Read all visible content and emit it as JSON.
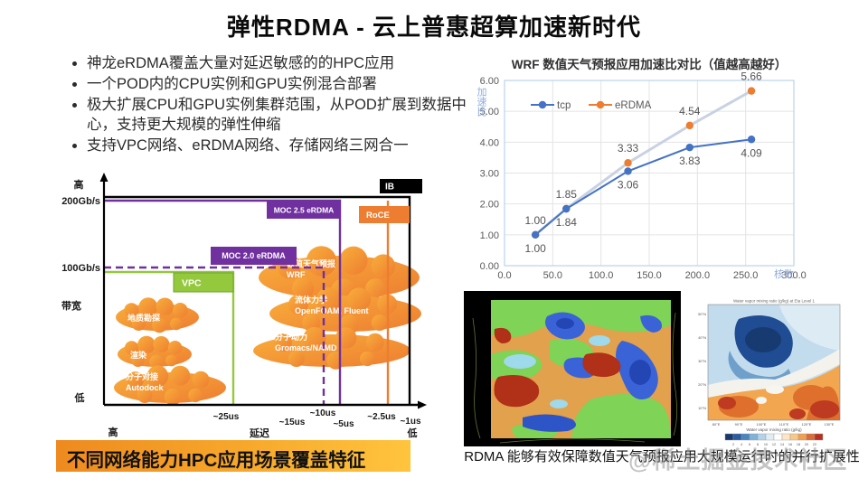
{
  "title": "弹性RDMA - 云上普惠超算加速新时代",
  "bullets": [
    "神龙eRDMA覆盖大量对延迟敏感的的HPC应用",
    "一个POD内的CPU实例和GPU实例混合部署",
    "极大扩展CPU和GPU实例集群范围，从POD扩展到数据中心，支持更大规模的弹性伸缩",
    "支持VPC网络、eRDMA网络、存储网络三网合一"
  ],
  "chart_data": {
    "type": "line",
    "title": "WRF 数值天气预报应用加速比对比（值越高越好）",
    "xlabel": "核数",
    "ylabel": "加速比",
    "x": [
      32,
      64,
      128,
      192,
      256
    ],
    "series": [
      {
        "name": "eRDMA",
        "marker_color": "#ED7D31",
        "line_color": "#C9D2E2",
        "legend_line_color": "#ED7D31",
        "values": [
          1.0,
          1.85,
          3.33,
          4.54,
          5.66
        ],
        "labels": [
          "1.00",
          "1.85",
          "3.33",
          "4.54",
          "5.66"
        ],
        "label_side": "above"
      },
      {
        "name": "tcp",
        "marker_color": "#4472C4",
        "line_color": "#4472C4",
        "legend_line_color": "#4472C4",
        "values": [
          1.0,
          1.84,
          3.06,
          3.83,
          4.09
        ],
        "labels": [
          "1.00",
          "1.84",
          "3.06",
          "3.83",
          "4.09"
        ],
        "label_side": "below"
      }
    ],
    "legend_order": [
      "tcp",
      "eRDMA"
    ],
    "xlim": [
      0,
      300
    ],
    "ylim": [
      0,
      6
    ],
    "x_ticks": [
      "0.0",
      "50.0",
      "100.0",
      "150.0",
      "200.0",
      "250.0",
      "300.0"
    ],
    "y_ticks": [
      "0.00",
      "1.00",
      "2.00",
      "3.00",
      "4.00",
      "5.00",
      "6.00"
    ],
    "grid": true,
    "legend_position": "top-left-inside"
  },
  "diagram": {
    "banner": "不同网络能力HPC应用场景覆盖特征",
    "y_axis": {
      "top_label": "高",
      "tick_200": "200Gb/s",
      "tick_100": "100Gb/s",
      "axis_title": "带宽",
      "bottom_label": "低"
    },
    "x_axis": {
      "left_label": "高",
      "axis_title": "延迟",
      "right_label": "低",
      "ticks": [
        "~25us",
        "~15us",
        "~10us",
        "~5us",
        "~2.5us",
        "~1us"
      ]
    },
    "networks": [
      {
        "name": "VPC",
        "color": "#94C83D",
        "style": "solid"
      },
      {
        "name": "MOC 2.0 eRDMA",
        "color": "#7030A0",
        "style": "dashed"
      },
      {
        "name": "MOC 2.5 eRDMA",
        "color": "#7030A0",
        "style": "solid"
      },
      {
        "name": "RoCE",
        "color": "#ED7D31",
        "style": "solid"
      },
      {
        "name": "IB",
        "color": "#000000",
        "style": "solid"
      }
    ],
    "applications": [
      {
        "lines": [
          "地质勘探"
        ]
      },
      {
        "lines": [
          "渲染"
        ]
      },
      {
        "lines": [
          "分子对接",
          "Autodock"
        ]
      },
      {
        "lines": [
          "数值天气预报",
          "WRF"
        ]
      },
      {
        "lines": [
          "流体力学",
          "OpenFOAM, Fluent"
        ]
      },
      {
        "lines": [
          "分子动力",
          "Gromacs/NAMD"
        ]
      }
    ],
    "cloud_colors": {
      "start": "#F9AE3B",
      "end": "#ED7D31"
    }
  },
  "figures": {
    "right_map": {
      "title": "Water vapor mixing ratio (g/kg) at Eta Level 1",
      "lat_ticks": [
        "50°N",
        "40°N",
        "30°N",
        "20°N",
        "10°N"
      ],
      "lon_ticks": [
        "80°E",
        "90°E",
        "100°E",
        "110°E",
        "120°E",
        "130°E"
      ],
      "colorbar_title": "Water vapor mixing ratio (g/kg)",
      "colorbar_ticks": [
        "2",
        "4",
        "6",
        "8",
        "10",
        "12",
        "14",
        "16",
        "18",
        "20",
        "22"
      ],
      "colorbar_colors": [
        "#19386e",
        "#2c5ba0",
        "#4886c2",
        "#7fb3d8",
        "#b3d3e8",
        "#e1edf5",
        "#ffffff",
        "#fbe6c8",
        "#f8c887",
        "#f2a050",
        "#dd6b35",
        "#b63122"
      ]
    },
    "caption": "RDMA 能够有效保障数值天气预报应用大规模运行时的并行扩展性",
    "watermark": "@稀土掘金技术社区"
  }
}
